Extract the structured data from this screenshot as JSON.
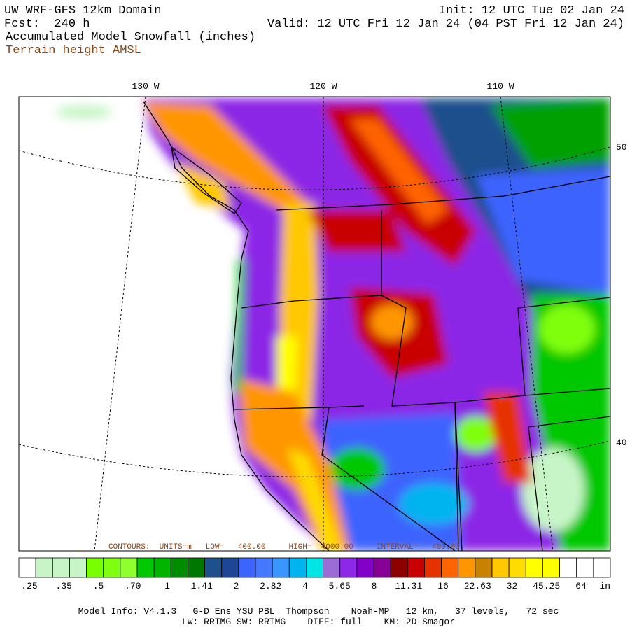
{
  "header": {
    "title": "UW WRF-GFS 12km Domain",
    "init": "Init: 12 UTC Tue 02 Jan 24",
    "forecast": "Fcst:  240 h",
    "valid": "Valid: 12 UTC Fri 12 Jan 24 (04 PST Fri 12 Jan 24)",
    "field": "Accumulated Model Snowfall (inches)",
    "contour_field": "Terrain height AMSL"
  },
  "map": {
    "longitude_labels": [
      "130 W",
      "120 W",
      "110 W"
    ],
    "latitude_labels": [
      "50",
      "40"
    ],
    "contour_note": "CONTOURS:  UNITS=m   LOW=   400.00     HIGH=  4000.00     INTERVAL=   400.00"
  },
  "colorbar": {
    "colors": [
      "#ffffff",
      "#c8f5c8",
      "#c8f5c8",
      "#c8f5c8",
      "#78ff00",
      "#80ff10",
      "#90ff30",
      "#00c800",
      "#00b400",
      "#008c00",
      "#007800",
      "#1e508c",
      "#1e4696",
      "#3c64ff",
      "#4678ff",
      "#3c96ff",
      "#00b4f0",
      "#00e6e6",
      "#9b6bd6",
      "#8c28e6",
      "#8200c8",
      "#870096",
      "#8c0000",
      "#c80000",
      "#e63200",
      "#ff6400",
      "#ff9600",
      "#c88200",
      "#ffc800",
      "#ffdc00",
      "#ffff00",
      "#ffff00",
      "#ffffff",
      "#ffffff",
      "#ffffff"
    ],
    "labels": [
      ".25",
      ".35",
      ".5",
      ".70",
      "1",
      "1.41",
      "2",
      "2.82",
      "4",
      "5.65",
      "8",
      "11.31",
      "16",
      "22.63",
      "32",
      "45.25",
      "64"
    ],
    "units": "in"
  },
  "footer": {
    "line1": "Model Info: V4.1.3   G-D Ens YSU PBL  Thompson    Noah-MP   12 km,   37 levels,   72 sec",
    "line2": "LW: RRTMG SW: RRTMG    DIFF: full    KM: 2D Smagor"
  }
}
